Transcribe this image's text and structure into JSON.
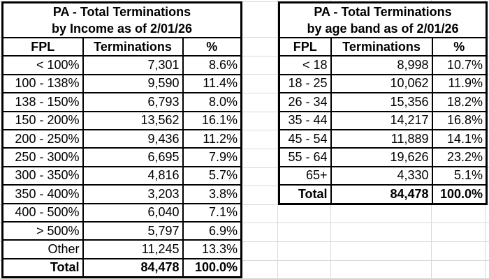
{
  "colors": {
    "background": "#ffffff",
    "text": "#000000",
    "table_border": "#000000",
    "gridline": "#d9d9d9"
  },
  "tables": [
    {
      "title_line1": "PA - Total Terminations",
      "title_line2": "by Income as of 2/01/26",
      "columns": [
        "FPL",
        "Terminations",
        "%"
      ],
      "rows": [
        [
          "< 100%",
          "7,301",
          "8.6%"
        ],
        [
          "100 - 138%",
          "9,590",
          "11.4%"
        ],
        [
          "138 - 150%",
          "6,793",
          "8.0%"
        ],
        [
          "150 - 200%",
          "13,562",
          "16.1%"
        ],
        [
          "200 - 250%",
          "9,436",
          "11.2%"
        ],
        [
          "250 - 300%",
          "6,695",
          "7.9%"
        ],
        [
          "300 - 350%",
          "4,816",
          "5.7%"
        ],
        [
          "350 - 400%",
          "3,203",
          "3.8%"
        ],
        [
          "400 - 500%",
          "6,040",
          "7.1%"
        ],
        [
          "> 500%",
          "5,797",
          "6.9%"
        ],
        [
          "Other",
          "11,245",
          "13.3%"
        ]
      ],
      "total": [
        "Total",
        "84,478",
        "100.0%"
      ]
    },
    {
      "title_line1": "PA - Total Terminations",
      "title_line2": "by age band as of 2/01/26",
      "columns": [
        "FPL",
        "Terminations",
        "%"
      ],
      "rows": [
        [
          "< 18",
          "8,998",
          "10.7%"
        ],
        [
          "18 - 25",
          "10,062",
          "11.9%"
        ],
        [
          "26 - 34",
          "15,356",
          "18.2%"
        ],
        [
          "35 - 44",
          "14,217",
          "16.8%"
        ],
        [
          "45 - 54",
          "11,889",
          "14.1%"
        ],
        [
          "55 - 64",
          "19,626",
          "23.2%"
        ],
        [
          "65+",
          "4,330",
          "5.1%"
        ]
      ],
      "total": [
        "Total",
        "84,478",
        "100.0%"
      ]
    }
  ]
}
